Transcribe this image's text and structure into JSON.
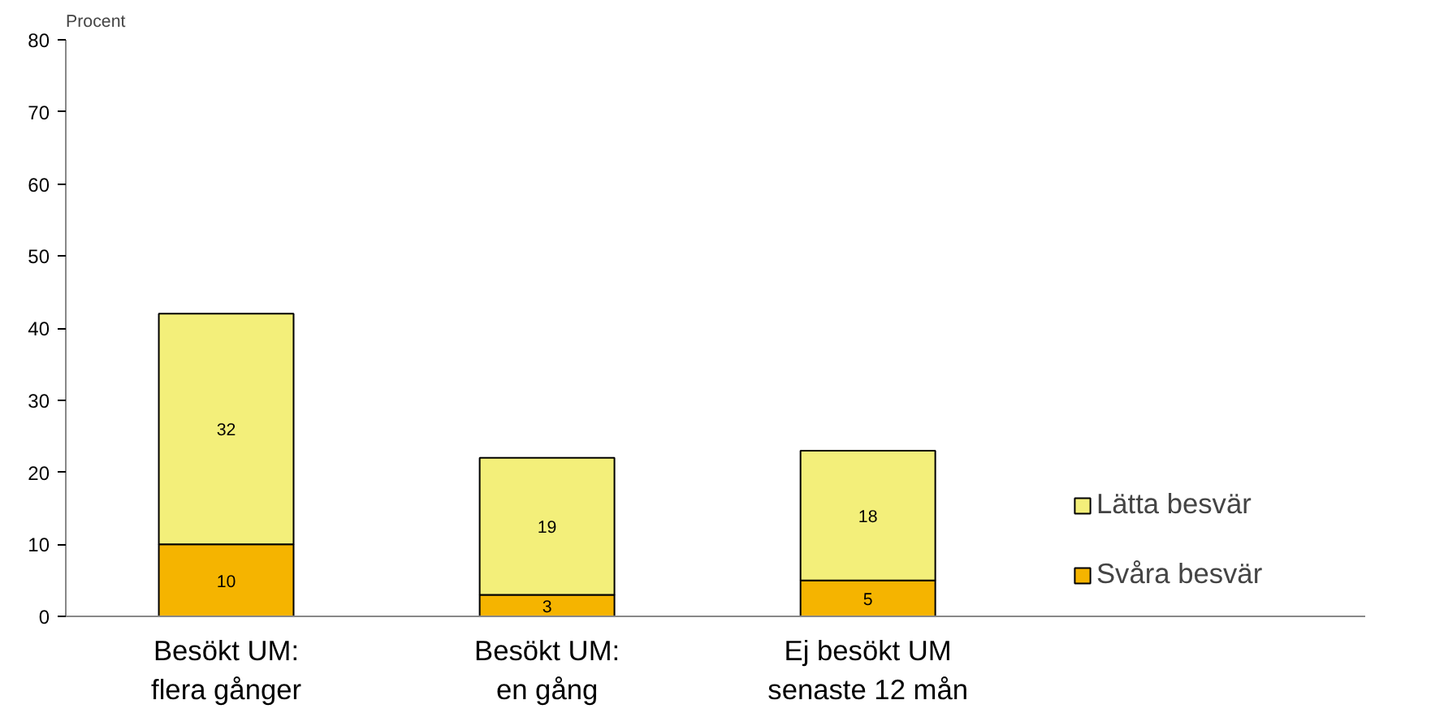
{
  "chart_data": {
    "type": "bar",
    "stacked": true,
    "ylabel": "Procent",
    "categories": [
      "Besökt UM:\nflera gånger",
      "Besökt UM:\nen gång",
      "Ej besökt UM\nsenaste 12 mån"
    ],
    "series": [
      {
        "name": "Svåra besvär",
        "color": "#f5b400",
        "values": [
          10,
          3,
          5
        ]
      },
      {
        "name": "Lätta besvär",
        "color": "#f3ef7a",
        "values": [
          32,
          19,
          18
        ]
      }
    ],
    "ylim": [
      0,
      80
    ],
    "yticks": [
      0,
      10,
      20,
      30,
      40,
      50,
      60,
      70,
      80
    ],
    "data_labels": true,
    "grid": false,
    "legend": "right"
  }
}
